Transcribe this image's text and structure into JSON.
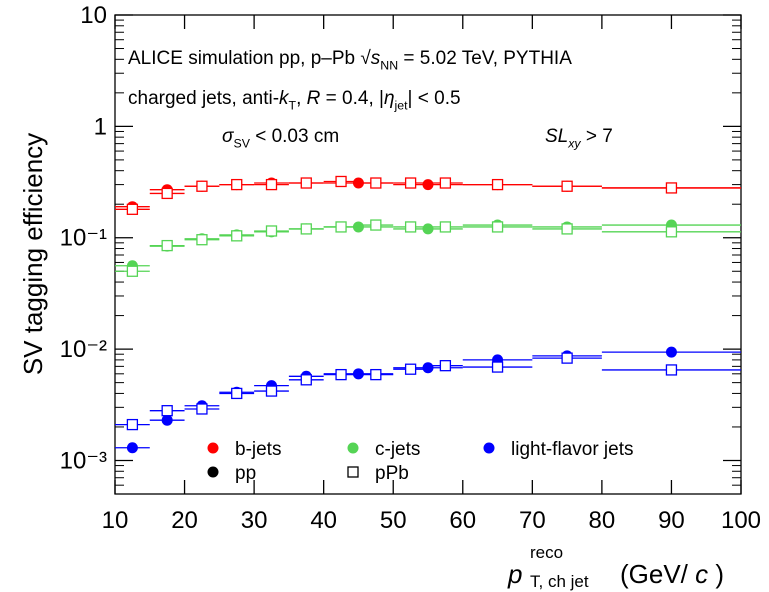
{
  "chart_data": {
    "type": "scatter",
    "y_label": "SV tagging efficiency",
    "x_label": [
      {
        "text": "p",
        "style": "italic"
      },
      {
        "text": "reco",
        "style": "sup"
      },
      {
        "text": "T, ch jet",
        "style": "sub"
      },
      {
        "text": " (GeV/"
      },
      {
        "text": "c",
        "style": "italic"
      },
      {
        "text": ")"
      }
    ],
    "annotations": [
      [
        {
          "text": "ALICE simulation  pp, p–Pb "
        },
        {
          "text": "√"
        },
        {
          "text": "s",
          "style": "italic"
        },
        {
          "text": "NN",
          "style": "sub"
        },
        {
          "text": " = 5.02 TeV, PYTHIA"
        }
      ],
      [
        {
          "text": "charged jets, anti-"
        },
        {
          "text": "k",
          "style": "italic"
        },
        {
          "text": "T",
          "style": "sub"
        },
        {
          "text": ", "
        },
        {
          "text": "R",
          "style": "italic"
        },
        {
          "text": " = 0.4, |"
        },
        {
          "text": "η",
          "style": "italic"
        },
        {
          "text": "jet",
          "style": "sub"
        },
        {
          "text": "| < 0.5"
        }
      ],
      [
        {
          "text": "σ",
          "style": "italic"
        },
        {
          "text": "SV",
          "style": "sub"
        },
        {
          "text": " < 0.03 cm"
        }
      ],
      [
        {
          "text": "SL",
          "style": "italic"
        },
        {
          "text": "xy",
          "style": "subitalic"
        },
        {
          "text": " > 7"
        }
      ]
    ],
    "xlim": [
      10,
      100
    ],
    "xticks": [
      10,
      20,
      30,
      40,
      50,
      60,
      70,
      80,
      90,
      100
    ],
    "ylim": [
      0.0005,
      10
    ],
    "ylog": true,
    "yticks": [
      {
        "value": 0.001,
        "label": "10⁻³"
      },
      {
        "value": 0.01,
        "label": "10⁻²"
      },
      {
        "value": 0.1,
        "label": "10⁻¹"
      },
      1,
      10
    ],
    "series": [
      {
        "name": "b-jets",
        "system": "pp",
        "marker": "circle",
        "color": "#ff0000",
        "x": [
          12.5,
          17.5,
          22.5,
          27.5,
          32.5,
          37.5,
          45,
          55,
          65,
          75,
          90
        ],
        "xerr": [
          2.5,
          2.5,
          2.5,
          2.5,
          2.5,
          2.5,
          5,
          5,
          5,
          5,
          10
        ],
        "values": [
          0.19,
          0.27,
          0.29,
          0.3,
          0.31,
          0.31,
          0.31,
          0.3,
          0.3,
          0.29,
          0.28
        ]
      },
      {
        "name": "b-jets",
        "system": "pPb",
        "marker": "open-square",
        "color": "#ff0000",
        "x": [
          12.5,
          17.5,
          22.5,
          27.5,
          32.5,
          37.5,
          42.5,
          47.5,
          52.5,
          57.5,
          65,
          75,
          90
        ],
        "xerr": [
          2.5,
          2.5,
          2.5,
          2.5,
          2.5,
          2.5,
          2.5,
          2.5,
          2.5,
          2.5,
          5,
          5,
          10
        ],
        "values": [
          0.18,
          0.25,
          0.29,
          0.3,
          0.3,
          0.31,
          0.32,
          0.31,
          0.31,
          0.31,
          0.3,
          0.29,
          0.28
        ]
      },
      {
        "name": "c-jets",
        "system": "pp",
        "marker": "circle",
        "color": "#55d455",
        "x": [
          12.5,
          17.5,
          22.5,
          27.5,
          32.5,
          37.5,
          45,
          55,
          65,
          75,
          90
        ],
        "xerr": [
          2.5,
          2.5,
          2.5,
          2.5,
          2.5,
          2.5,
          5,
          5,
          5,
          5,
          10
        ],
        "values": [
          0.056,
          0.084,
          0.098,
          0.106,
          0.113,
          0.12,
          0.125,
          0.12,
          0.13,
          0.125,
          0.13
        ]
      },
      {
        "name": "c-jets",
        "system": "pPb",
        "marker": "open-square",
        "color": "#55d455",
        "x": [
          12.5,
          17.5,
          22.5,
          27.5,
          32.5,
          37.5,
          42.5,
          47.5,
          52.5,
          57.5,
          65,
          75,
          90
        ],
        "xerr": [
          2.5,
          2.5,
          2.5,
          2.5,
          2.5,
          2.5,
          2.5,
          2.5,
          2.5,
          2.5,
          5,
          5,
          10
        ],
        "values": [
          0.05,
          0.085,
          0.096,
          0.104,
          0.115,
          0.12,
          0.125,
          0.13,
          0.125,
          0.125,
          0.125,
          0.12,
          0.113
        ]
      },
      {
        "name": "light-flavor jets",
        "system": "pp",
        "marker": "circle",
        "color": "#0000ff",
        "x": [
          12.5,
          17.5,
          22.5,
          27.5,
          32.5,
          37.5,
          45,
          55,
          65,
          75,
          90
        ],
        "xerr": [
          2.5,
          2.5,
          2.5,
          2.5,
          2.5,
          2.5,
          5,
          5,
          5,
          5,
          10
        ],
        "values": [
          0.0013,
          0.0023,
          0.0031,
          0.0041,
          0.0047,
          0.0057,
          0.006,
          0.0068,
          0.008,
          0.0087,
          0.0094
        ]
      },
      {
        "name": "light-flavor jets",
        "system": "pPb",
        "marker": "open-square",
        "color": "#0000ff",
        "x": [
          12.5,
          17.5,
          22.5,
          27.5,
          32.5,
          37.5,
          42.5,
          47.5,
          52.5,
          57.5,
          65,
          75,
          90
        ],
        "xerr": [
          2.5,
          2.5,
          2.5,
          2.5,
          2.5,
          2.5,
          2.5,
          2.5,
          2.5,
          2.5,
          5,
          5,
          10
        ],
        "values": [
          0.0021,
          0.0028,
          0.0029,
          0.004,
          0.0042,
          0.0053,
          0.0059,
          0.0059,
          0.0066,
          0.0071,
          0.0069,
          0.0083,
          0.0065
        ]
      }
    ]
  }
}
